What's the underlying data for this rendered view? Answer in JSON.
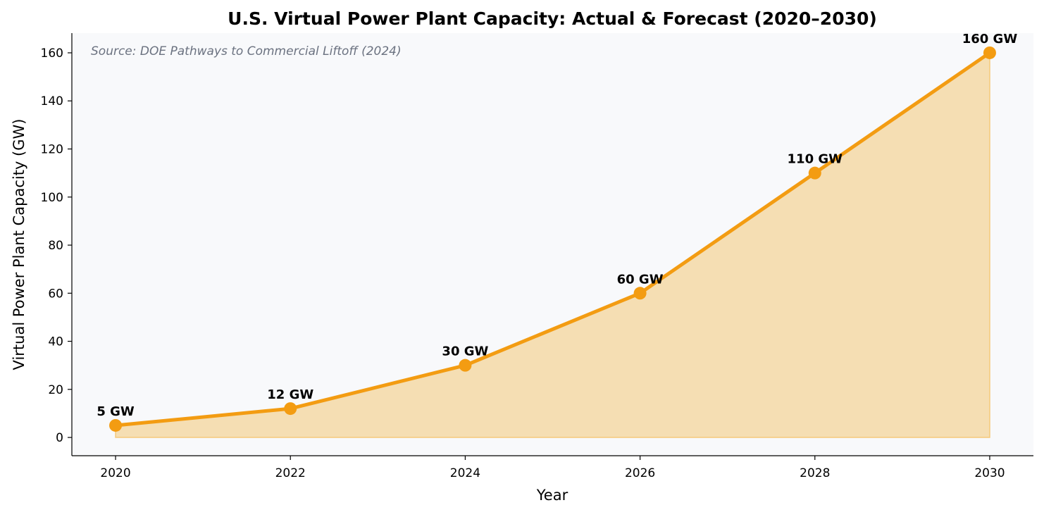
{
  "chart_data": {
    "type": "area",
    "title": "U.S. Virtual Power Plant Capacity: Actual & Forecast (2020–2030)",
    "xlabel": "Year",
    "ylabel": "Virtual Power Plant Capacity (GW)",
    "annotation": "Source: DOE Pathways to Commercial Liftoff (2024)",
    "x": [
      2020,
      2022,
      2024,
      2026,
      2028,
      2030
    ],
    "values": [
      5,
      12,
      30,
      60,
      110,
      160
    ],
    "data_labels": [
      "5 GW",
      "12 GW",
      "30 GW",
      "60 GW",
      "110 GW",
      "160 GW"
    ],
    "xticks": [
      "2020",
      "2022",
      "2024",
      "2026",
      "2028",
      "2030"
    ],
    "yticks": [
      "0",
      "20",
      "40",
      "60",
      "80",
      "100",
      "120",
      "140",
      "160"
    ],
    "xlim": [
      2019.5,
      2030.5
    ],
    "ylim": [
      -7.6,
      168.2
    ],
    "grid": false,
    "colors": {
      "line": "#f39c12",
      "fill": "#f5deb3",
      "plot_bg": "#f8f9fb",
      "annotation": "#6b7280"
    }
  }
}
